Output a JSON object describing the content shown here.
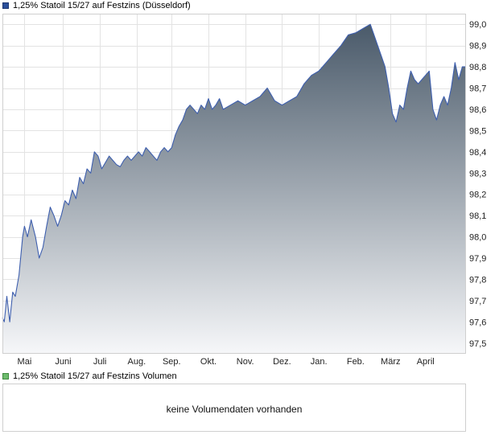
{
  "chart_data": [
    {
      "type": "area",
      "legend": "1,25% Statoil 15/27 auf Festzins (Düsseldorf)",
      "legend_color": "#2a4f9a",
      "line_color": "#3e5fae",
      "fill_top_color": "#4a5a6a",
      "fill_bottom_color": "#f6f7f9",
      "y_axis_position": "right",
      "ylim": [
        97.45,
        99.05
      ],
      "yticks": [
        97.5,
        97.6,
        97.7,
        97.8,
        97.9,
        98.0,
        98.1,
        98.2,
        98.3,
        98.4,
        98.5,
        98.6,
        98.7,
        98.8,
        98.9,
        99.0
      ],
      "ytick_labels": [
        "97,5",
        "97,6",
        "97,7",
        "97,8",
        "97,9",
        "98,0",
        "98,1",
        "98,2",
        "98,3",
        "98,4",
        "98,5",
        "98,6",
        "98,7",
        "98,8",
        "98,9",
        "99,0"
      ],
      "x_labels": [
        "Mai",
        "Juni",
        "Juli",
        "Aug.",
        "Sep.",
        "Okt.",
        "Nov.",
        "Dez.",
        "Jan.",
        "Feb.",
        "März",
        "April"
      ],
      "x_label_positions": [
        0.6,
        1.65,
        2.65,
        3.65,
        4.6,
        5.6,
        6.6,
        7.6,
        8.6,
        9.6,
        10.55,
        11.5
      ],
      "grid": true,
      "series": [
        {
          "x": [
            0.0,
            0.05,
            0.12,
            0.2,
            0.28,
            0.35,
            0.45,
            0.55,
            0.6,
            0.68,
            0.78,
            0.9,
            1.0,
            1.1,
            1.2,
            1.3,
            1.4,
            1.5,
            1.6,
            1.7,
            1.8,
            1.9,
            2.0,
            2.1,
            2.2,
            2.3,
            2.4,
            2.5,
            2.6,
            2.7,
            2.8,
            2.9,
            3.0,
            3.1,
            3.2,
            3.3,
            3.4,
            3.5,
            3.6,
            3.7,
            3.8,
            3.9,
            4.0,
            4.1,
            4.2,
            4.3,
            4.4,
            4.5,
            4.6,
            4.7,
            4.8,
            4.9,
            5.0,
            5.1,
            5.2,
            5.3,
            5.4,
            5.5,
            5.6,
            5.7,
            5.8,
            5.9,
            6.0,
            6.2,
            6.4,
            6.6,
            6.8,
            7.0,
            7.2,
            7.4,
            7.6,
            7.8,
            8.0,
            8.2,
            8.4,
            8.6,
            8.8,
            9.0,
            9.2,
            9.4,
            9.6,
            9.8,
            10.0,
            10.1,
            10.2,
            10.3,
            10.4,
            10.5,
            10.6,
            10.7,
            10.8,
            10.9,
            11.0,
            11.1,
            11.2,
            11.3,
            11.4,
            11.5,
            11.6,
            11.7,
            11.8,
            11.9,
            12.0,
            12.1,
            12.2,
            12.3,
            12.4,
            12.5,
            12.6
          ],
          "values": [
            97.62,
            97.6,
            97.72,
            97.6,
            97.74,
            97.72,
            97.82,
            98.0,
            98.05,
            98.0,
            98.08,
            98.0,
            97.9,
            97.95,
            98.05,
            98.14,
            98.1,
            98.05,
            98.1,
            98.17,
            98.15,
            98.22,
            98.18,
            98.28,
            98.25,
            98.32,
            98.3,
            98.4,
            98.38,
            98.32,
            98.35,
            98.38,
            98.36,
            98.34,
            98.33,
            98.36,
            98.38,
            98.36,
            98.38,
            98.4,
            98.38,
            98.42,
            98.4,
            98.38,
            98.36,
            98.4,
            98.42,
            98.4,
            98.42,
            98.48,
            98.52,
            98.55,
            98.6,
            98.62,
            98.6,
            98.58,
            98.62,
            98.6,
            98.65,
            98.6,
            98.62,
            98.65,
            98.6,
            98.62,
            98.64,
            98.62,
            98.64,
            98.66,
            98.7,
            98.64,
            98.62,
            98.64,
            98.66,
            98.72,
            98.76,
            98.78,
            98.82,
            98.86,
            98.9,
            98.95,
            98.96,
            98.98,
            99.0,
            98.95,
            98.9,
            98.85,
            98.8,
            98.7,
            98.58,
            98.54,
            98.62,
            98.6,
            98.7,
            98.78,
            98.74,
            98.72,
            98.74,
            98.76,
            98.78,
            98.6,
            98.55,
            98.62,
            98.66,
            98.62,
            98.7,
            98.82,
            98.74,
            98.8,
            98.8
          ]
        }
      ]
    },
    {
      "type": "bar",
      "legend": "1,25% Statoil 15/27 auf Festzins Volumen",
      "legend_color": "#6dbb6d",
      "message": "keine Volumendaten vorhanden"
    }
  ]
}
